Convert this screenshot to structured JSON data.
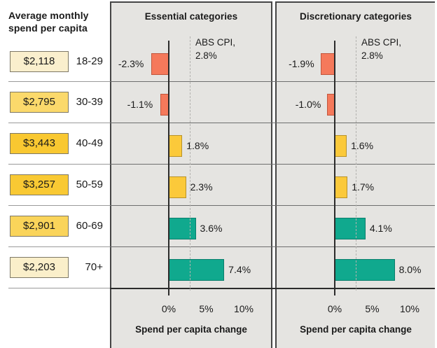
{
  "left_column": {
    "header": "Average monthly spend per capita",
    "rows": [
      {
        "value": "$2,118",
        "age": "18-29",
        "box_color": "#FAEFCD"
      },
      {
        "value": "$2,795",
        "age": "30-39",
        "box_color": "#FBD96B"
      },
      {
        "value": "$3,443",
        "age": "40-49",
        "box_color": "#F9C831"
      },
      {
        "value": "$3,257",
        "age": "50-59",
        "box_color": "#F9C933"
      },
      {
        "value": "$2,901",
        "age": "60-69",
        "box_color": "#FAD45A"
      },
      {
        "value": "$2,203",
        "age": "70+",
        "box_color": "#FAEFCA"
      }
    ]
  },
  "chart_data": [
    {
      "type": "bar",
      "orientation": "horizontal",
      "title": "Essential categories",
      "categories": [
        "18-29",
        "30-39",
        "40-49",
        "50-59",
        "60-69",
        "70+"
      ],
      "values": [
        -2.3,
        -1.1,
        1.8,
        2.3,
        3.6,
        7.4
      ],
      "bar_labels": [
        "-2.3%",
        "-1.1%",
        "1.8%",
        "2.3%",
        "3.6%",
        "7.4%"
      ],
      "bar_colors": [
        "#F5795B",
        "#F5795B",
        "#FBC93A",
        "#FBC93A",
        "#10A98E",
        "#10A98E"
      ],
      "bar_border_colors": [
        "#C2563C",
        "#C2563C",
        "#B8922A",
        "#B8922A",
        "#0B7E6C",
        "#0B7E6C"
      ],
      "reference_line": {
        "label": "ABS CPI,\n2.8%",
        "value": 2.8
      },
      "xlabel": "Spend per capita change",
      "ticks": [
        "0%",
        "5%",
        "10%"
      ],
      "tick_values": [
        0,
        5,
        10
      ],
      "xlim": [
        -7.5,
        14
      ],
      "grid": false
    },
    {
      "type": "bar",
      "orientation": "horizontal",
      "title": "Discretionary categories",
      "categories": [
        "18-29",
        "30-39",
        "40-49",
        "50-59",
        "60-69",
        "70+"
      ],
      "values": [
        -1.9,
        -1.0,
        1.6,
        1.7,
        4.1,
        8.0
      ],
      "bar_labels": [
        "-1.9%",
        "-1.0%",
        "1.6%",
        "1.7%",
        "4.1%",
        "8.0%"
      ],
      "bar_colors": [
        "#F5795B",
        "#F5795B",
        "#FBC93A",
        "#FBC93A",
        "#10A98E",
        "#10A98E"
      ],
      "bar_border_colors": [
        "#C2563C",
        "#C2563C",
        "#B8922A",
        "#B8922A",
        "#0B7E6C",
        "#0B7E6C"
      ],
      "reference_line": {
        "label": "ABS CPI,\n2.8%",
        "value": 2.8
      },
      "xlabel": "Spend per capita change",
      "ticks": [
        "0%",
        "5%",
        "10%"
      ],
      "tick_values": [
        0,
        5,
        10
      ],
      "xlim": [
        -7.5,
        14
      ],
      "grid": false
    }
  ],
  "colors": {
    "panel_background": "#E5E4E1",
    "panel_border": "#454545",
    "negative_bar": "#F5795B",
    "low_positive_bar": "#FBC93A",
    "high_positive_bar": "#10A98E",
    "reference_dash": "#B3B2AF",
    "text": "#1A1A1A"
  }
}
